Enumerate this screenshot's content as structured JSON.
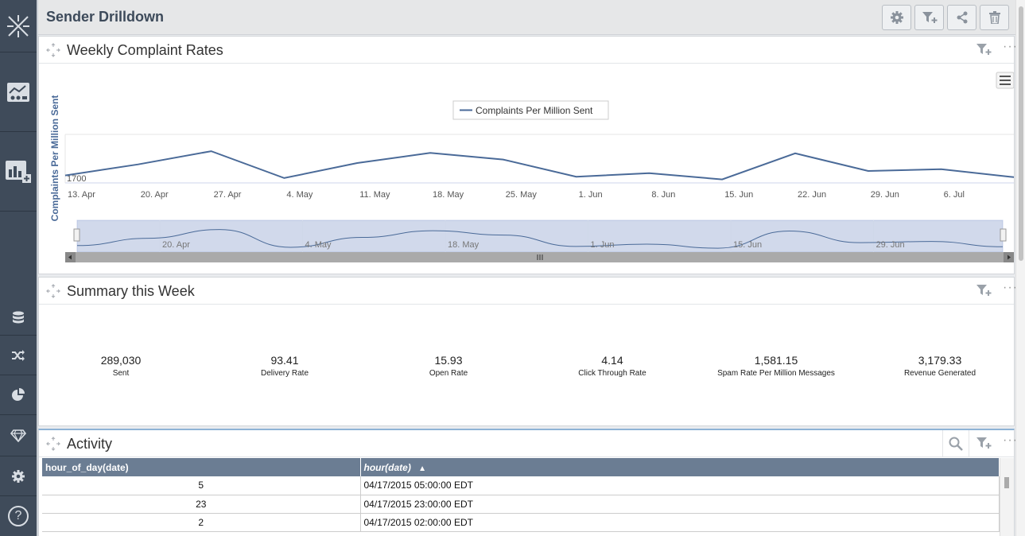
{
  "header": {
    "title": "Sender Drilldown"
  },
  "sidebar": {
    "items": [
      {
        "icon": "app-logo-icon"
      },
      {
        "icon": "charts-icon"
      },
      {
        "icon": "add-chart-icon"
      },
      {
        "icon": "database-icon"
      },
      {
        "icon": "shuffle-icon"
      },
      {
        "icon": "pie-chart-icon"
      },
      {
        "icon": "gem-icon"
      },
      {
        "icon": "gear-icon"
      },
      {
        "icon": "help-icon",
        "label": "?"
      }
    ]
  },
  "panels": {
    "complaints": {
      "title": "Weekly Complaint Rates"
    },
    "summary": {
      "title": "Summary this Week"
    },
    "activity": {
      "title": "Activity"
    }
  },
  "chart_data": {
    "type": "line",
    "ylabel": "Complaints Per Million Sent",
    "y_tick_labels": [
      "1700"
    ],
    "x_tick_labels": [
      "13. Apr",
      "20. Apr",
      "27. Apr",
      "4. May",
      "11. May",
      "18. May",
      "25. May",
      "1. Jun",
      "8. Jun",
      "15. Jun",
      "22. Jun",
      "29. Jun",
      "6. Jul"
    ],
    "navigator_labels": [
      "20. Apr",
      "4. May",
      "18. May",
      "1. Jun",
      "15. Jun",
      "29. Jun"
    ],
    "series": [
      {
        "name": "Complaints Per Million Sent",
        "values": [
          1707,
          1732,
          1762,
          1701,
          1735,
          1758,
          1743,
          1704,
          1712,
          1698,
          1757,
          1717,
          1721,
          1703
        ]
      }
    ],
    "ylim": [
      1690,
      1800
    ],
    "legend_position": "top-center",
    "color": "#4a6a98"
  },
  "summary": {
    "metrics": [
      {
        "value": "289,030",
        "label": "Sent"
      },
      {
        "value": "93.41",
        "label": "Delivery Rate"
      },
      {
        "value": "15.93",
        "label": "Open Rate"
      },
      {
        "value": "4.14",
        "label": "Click Through Rate"
      },
      {
        "value": "1,581.15",
        "label": "Spam Rate Per Million Messages"
      },
      {
        "value": "3,179.33",
        "label": "Revenue Generated"
      }
    ]
  },
  "activity": {
    "columns": [
      "hour_of_day(date)",
      "hour(date)"
    ],
    "sort_indicator": "▲",
    "rows": [
      [
        "5",
        "04/17/2015 05:00:00 EDT"
      ],
      [
        "23",
        "04/17/2015 23:00:00 EDT"
      ],
      [
        "2",
        "04/17/2015 02:00:00 EDT"
      ]
    ]
  },
  "colors": {
    "sidebar": "#3f4b5a",
    "accent": "#4a6a98",
    "table_header": "#6b7d93"
  }
}
